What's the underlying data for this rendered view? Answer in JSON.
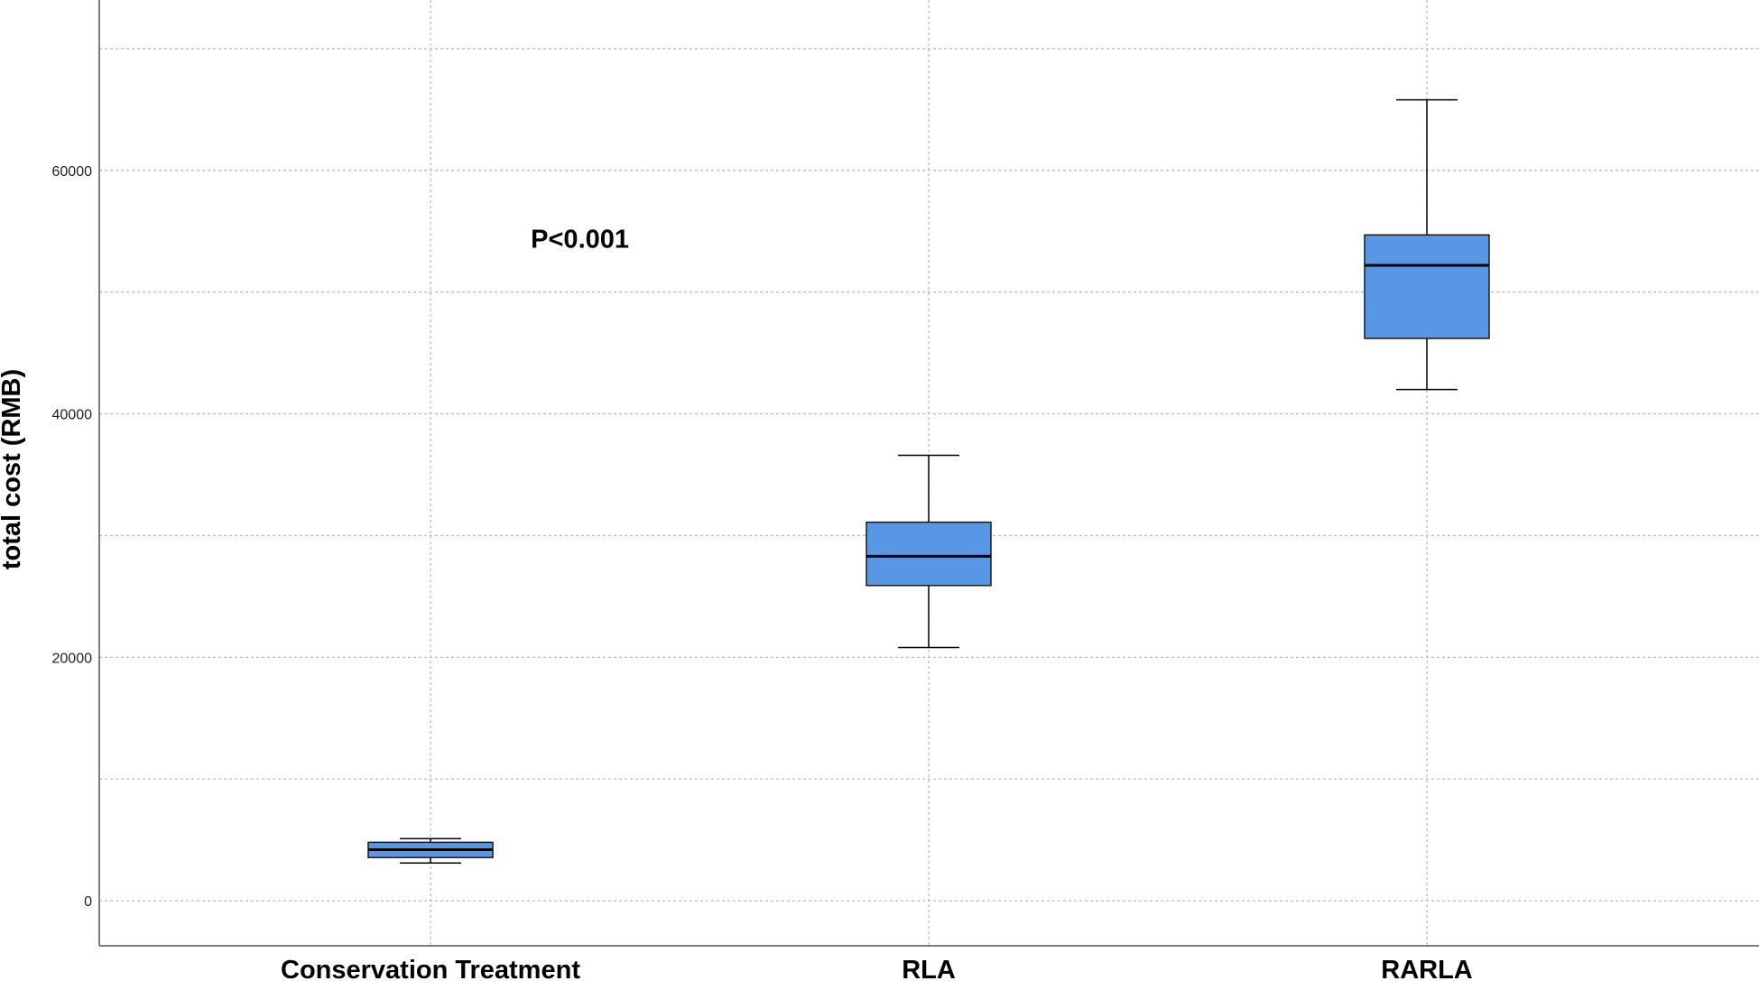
{
  "chart_data": {
    "type": "boxplot",
    "ylabel": "total cost (RMB)",
    "xlabel": "",
    "ylim": [
      -3700,
      74000
    ],
    "yticks": [
      0,
      20000,
      40000,
      60000
    ],
    "y_gridlines": [
      0,
      10000,
      20000,
      30000,
      40000,
      50000,
      60000,
      70000
    ],
    "grid": true,
    "categories": [
      "Conservation Treatment",
      "RLA",
      "RARLA"
    ],
    "boxes": [
      {
        "category": "Conservation Treatment",
        "whisker_low": 3100,
        "q1": 3550,
        "median": 4200,
        "q3": 4800,
        "whisker_high": 5100
      },
      {
        "category": "RLA",
        "whisker_low": 20800,
        "q1": 25900,
        "median": 28300,
        "q3": 31100,
        "whisker_high": 36600
      },
      {
        "category": "RARLA",
        "whisker_low": 42000,
        "q1": 46200,
        "median": 52200,
        "q3": 54700,
        "whisker_high": 65800
      }
    ],
    "annotations": [
      {
        "text": "P<0.001",
        "x_category": 0.3,
        "y": 54400
      }
    ],
    "colors": {
      "box_fill": "#5897e6",
      "box_stroke": "#1a1a1a",
      "grid": "#bdbdbd",
      "axis": "#555555"
    }
  }
}
